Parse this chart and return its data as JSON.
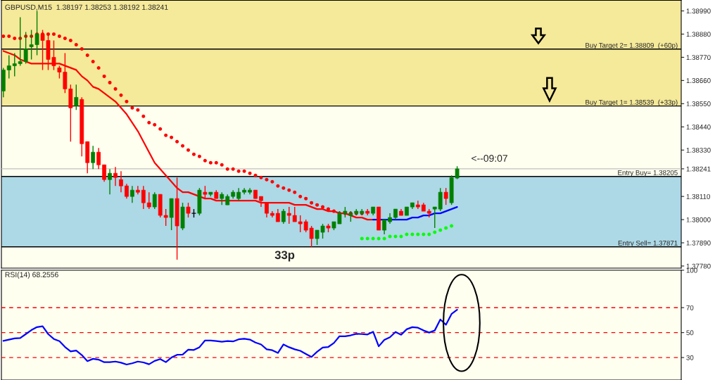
{
  "chart_data": [
    {
      "type": "candlestick",
      "title": "GBPUSD,M15  1.38197 1.38253 1.38192 1.38241",
      "categories": [
        null,
        null,
        null,
        null,
        null,
        null,
        null,
        null,
        null,
        null,
        null,
        null,
        null,
        null,
        null,
        null,
        null,
        null,
        null,
        null,
        null,
        null,
        null,
        null,
        null,
        null,
        null,
        null,
        null,
        null,
        null,
        null,
        null,
        null,
        null,
        null,
        null,
        null,
        null,
        null,
        null,
        null,
        null,
        null,
        null,
        null,
        null,
        null,
        null,
        null,
        null,
        null,
        null,
        null,
        null,
        null,
        null,
        null,
        null,
        null,
        null,
        null,
        null,
        null,
        null,
        null,
        null,
        null,
        null,
        null,
        null,
        null,
        null,
        null,
        null,
        null,
        null,
        null,
        null,
        null,
        null,
        null
      ],
      "ohlc": [
        [
          1.3861,
          1.3872,
          1.3858,
          1.3871
        ],
        [
          1.3871,
          1.3878,
          1.3867,
          1.3873
        ],
        [
          1.3873,
          1.3879,
          1.3868,
          1.3874
        ],
        [
          1.3874,
          1.3896,
          1.3873,
          1.3875
        ],
        [
          1.3875,
          1.3889,
          1.3874,
          1.3881
        ],
        [
          1.3882,
          1.389,
          1.3876,
          1.3883
        ],
        [
          1.3883,
          1.3899,
          1.3878,
          1.3888
        ],
        [
          1.3888,
          1.389,
          1.3871,
          1.3885
        ],
        [
          1.3885,
          1.3888,
          1.3871,
          1.3876
        ],
        [
          1.3877,
          1.3885,
          1.3871,
          1.3873
        ],
        [
          1.3872,
          1.3873,
          1.3867,
          1.387
        ],
        [
          1.387,
          1.3879,
          1.386,
          1.3862
        ],
        [
          1.3862,
          1.3864,
          1.3837,
          1.3853
        ],
        [
          1.3854,
          1.3864,
          1.3852,
          1.3858
        ],
        [
          1.3857,
          1.3858,
          1.383,
          1.3836
        ],
        [
          1.3837,
          1.3837,
          1.3822,
          1.3827
        ],
        [
          1.3827,
          1.3835,
          1.3824,
          1.3832
        ],
        [
          1.3832,
          1.3834,
          1.3824,
          1.3826
        ],
        [
          1.3826,
          1.3826,
          1.3818,
          1.3819
        ],
        [
          1.3819,
          1.3824,
          1.3812,
          1.3822
        ],
        [
          1.3822,
          1.3825,
          1.3816,
          1.382
        ],
        [
          1.3819,
          1.3823,
          1.3813,
          1.3816
        ],
        [
          1.3816,
          1.3817,
          1.381,
          1.3811
        ],
        [
          1.3811,
          1.3816,
          1.3808,
          1.3814
        ],
        [
          1.3814,
          1.3816,
          1.3812,
          1.3813
        ],
        [
          1.3814,
          1.3816,
          1.3805,
          1.3808
        ],
        [
          1.3808,
          1.3813,
          1.3805,
          1.3806
        ],
        [
          1.3806,
          1.3813,
          1.3805,
          1.3812
        ],
        [
          1.3812,
          1.3812,
          1.3801,
          1.3802
        ],
        [
          1.3802,
          1.3805,
          1.3797,
          1.3801
        ],
        [
          1.3801,
          1.381,
          1.3795,
          1.381
        ],
        [
          1.381,
          1.382,
          1.3781,
          1.3797
        ],
        [
          1.3796,
          1.3808,
          1.3795,
          1.3806
        ],
        [
          1.3806,
          1.3808,
          1.3801,
          1.3803
        ],
        [
          1.3803,
          1.3805,
          1.3801,
          1.3803
        ],
        [
          1.3803,
          1.3815,
          1.3802,
          1.3814
        ],
        [
          1.3813,
          1.3816,
          1.381,
          1.3812
        ],
        [
          1.3812,
          1.3813,
          1.3811,
          1.3813
        ],
        [
          1.3813,
          1.3814,
          1.381,
          1.381
        ],
        [
          1.381,
          1.3813,
          1.3807,
          1.3812
        ],
        [
          1.3807,
          1.3812,
          1.3807,
          1.3811
        ],
        [
          1.3811,
          1.3814,
          1.381,
          1.3813
        ],
        [
          1.381,
          1.3815,
          1.3809,
          1.3813
        ],
        [
          1.3813,
          1.3815,
          1.3812,
          1.3814
        ],
        [
          1.3813,
          1.3815,
          1.3812,
          1.3814
        ],
        [
          1.3814,
          1.3814,
          1.381,
          1.381
        ],
        [
          1.3811,
          1.3811,
          1.3806,
          1.3809
        ],
        [
          1.3808,
          1.3808,
          1.3801,
          1.3803
        ],
        [
          1.3803,
          1.3804,
          1.3801,
          1.3802
        ],
        [
          1.3803,
          1.3805,
          1.3799,
          1.3799
        ],
        [
          1.3799,
          1.3805,
          1.3798,
          1.3804
        ],
        [
          1.3803,
          1.3806,
          1.3798,
          1.3802
        ],
        [
          1.3802,
          1.3806,
          1.3799,
          1.3799
        ],
        [
          1.3799,
          1.3802,
          1.3794,
          1.3798
        ],
        [
          1.3799,
          1.38,
          1.3794,
          1.3795
        ],
        [
          1.3796,
          1.3797,
          1.3787,
          1.3791
        ],
        [
          1.3791,
          1.3795,
          1.3788,
          1.3795
        ],
        [
          1.3794,
          1.3798,
          1.3791,
          1.3797
        ],
        [
          1.3797,
          1.3798,
          1.3794,
          1.3796
        ],
        [
          1.3796,
          1.3799,
          1.3795,
          1.3799
        ],
        [
          1.3798,
          1.3804,
          1.3798,
          1.3803
        ],
        [
          1.3803,
          1.3806,
          1.3801,
          1.3804
        ],
        [
          1.3802,
          1.3804,
          1.3799,
          1.3803
        ],
        [
          1.3803,
          1.3805,
          1.3802,
          1.3804
        ],
        [
          1.3803,
          1.3805,
          1.3802,
          1.3804
        ],
        [
          1.3804,
          1.3805,
          1.3802,
          1.3803
        ],
        [
          1.3803,
          1.3806,
          1.3802,
          1.3806
        ],
        [
          1.3806,
          1.3806,
          1.3795,
          1.3795
        ],
        [
          1.3795,
          1.38,
          1.3793,
          1.38
        ],
        [
          1.3799,
          1.3803,
          1.3798,
          1.3801
        ],
        [
          1.3801,
          1.3805,
          1.38,
          1.3805
        ],
        [
          1.3804,
          1.3805,
          1.3802,
          1.3802
        ],
        [
          1.3802,
          1.3806,
          1.3802,
          1.3806
        ],
        [
          1.3806,
          1.3808,
          1.3805,
          1.3808
        ],
        [
          1.3807,
          1.3809,
          1.3805,
          1.3806
        ],
        [
          1.3807,
          1.3808,
          1.3804,
          1.3804
        ],
        [
          1.3804,
          1.3805,
          1.3801,
          1.3803
        ],
        [
          1.3805,
          1.3806,
          1.3796,
          1.3806
        ],
        [
          1.3805,
          1.3815,
          1.3804,
          1.3813
        ],
        [
          1.3813,
          1.3815,
          1.3807,
          1.381
        ],
        [
          1.3808,
          1.3821,
          1.3807,
          1.382
        ],
        [
          1.38197,
          1.38253,
          1.38192,
          1.38241
        ]
      ],
      "colors": [
        "#008000",
        "#008000",
        "#008000",
        "#008000",
        "#008000",
        "#008000",
        "#008000",
        "#ff0000",
        "#ff0000",
        "#ff0000",
        "#ff0000",
        "#ff0000",
        "#ff0000",
        "#008000",
        "#ff0000",
        "#ff0000",
        "#008000",
        "#ff0000",
        "#ff0000",
        "#008000",
        "#ff0000",
        "#ff0000",
        "#ff0000",
        "#008000",
        "#ff0000",
        "#ff0000",
        "#ff0000",
        "#008000",
        "#ff0000",
        "#ff0000",
        "#008000",
        "#ff0000",
        "#008000",
        "#ff0000",
        "#000000",
        "#008000",
        "#ff0000",
        "#008000",
        "#ff0000",
        "#008000",
        "#008000",
        "#008000",
        "#008000",
        "#008000",
        "#008000",
        "#ff0000",
        "#ff0000",
        "#ff0000",
        "#ff0000",
        "#ff0000",
        "#008000",
        "#ff0000",
        "#ff0000",
        "#ff0000",
        "#ff0000",
        "#ff0000",
        "#008000",
        "#008000",
        "#ff0000",
        "#008000",
        "#008000",
        "#008000",
        "#008000",
        "#008000",
        "#008000",
        "#ff0000",
        "#008000",
        "#ff0000",
        "#008000",
        "#008000",
        "#008000",
        "#ff0000",
        "#008000",
        "#008000",
        "#ff0000",
        "#ff0000",
        "#ff0000",
        "#008000",
        "#008000",
        "#ff0000",
        "#008000",
        "#008000"
      ],
      "series": [
        {
          "type": "line",
          "color": "#ff0000",
          "values": [
            1.388,
            1.3879,
            1.3878,
            1.3876,
            1.3875,
            1.3874,
            1.3874,
            1.3874,
            1.3874,
            1.3874,
            1.3874,
            1.3873,
            1.3872,
            1.3871,
            1.3868,
            1.3866,
            1.3863,
            1.3862,
            1.386,
            1.3858,
            1.3856,
            1.3853,
            1.385,
            1.3846,
            1.3842,
            1.3837,
            1.3832,
            1.3827,
            1.3824,
            1.3821,
            1.3818,
            1.3815,
            1.3813,
            1.3813,
            1.3812,
            1.3811,
            1.381,
            1.381,
            1.3809,
            1.3809,
            1.3809,
            1.3809,
            1.3809,
            1.3809,
            1.3809,
            1.3809,
            1.3808,
            1.3808,
            1.3808,
            1.3808,
            1.3808,
            1.3808,
            1.3807,
            1.3807,
            1.3807,
            1.3806,
            1.3805,
            1.3805,
            1.3804,
            1.3804,
            1.3803,
            1.3803,
            1.3802,
            1.3801,
            1.3801,
            1.38,
            1.38,
            null,
            null,
            null,
            null,
            null,
            null,
            null,
            null,
            null,
            null,
            null,
            null,
            null,
            null,
            null
          ]
        },
        {
          "type": "line",
          "color": "#0000ff",
          "values": [
            null,
            null,
            null,
            null,
            null,
            null,
            null,
            null,
            null,
            null,
            null,
            null,
            null,
            null,
            null,
            null,
            null,
            null,
            null,
            null,
            null,
            null,
            null,
            null,
            null,
            null,
            null,
            null,
            null,
            null,
            null,
            null,
            null,
            null,
            null,
            null,
            null,
            null,
            null,
            null,
            null,
            null,
            null,
            null,
            null,
            null,
            null,
            null,
            null,
            null,
            null,
            null,
            null,
            null,
            null,
            null,
            null,
            null,
            null,
            null,
            null,
            null,
            null,
            null,
            null,
            null,
            1.38,
            1.38,
            1.38,
            1.38,
            1.38,
            1.38,
            1.38,
            1.3801,
            1.3801,
            1.3802,
            1.3802,
            1.3803,
            1.3803,
            1.3804,
            1.3805,
            1.3806
          ]
        },
        {
          "type": "scatter",
          "marker": "circle",
          "color": "#ff0000",
          "values": [
            1.3887,
            1.3887,
            1.3886,
            1.3886,
            1.3887,
            1.3887,
            1.3888,
            1.3888,
            1.3888,
            1.3888,
            1.3887,
            1.3886,
            1.3885,
            1.3883,
            1.3881,
            1.3878,
            1.3875,
            1.3872,
            1.3868,
            1.3865,
            1.3862,
            1.3859,
            1.3856,
            1.3853,
            1.3852,
            1.3849,
            1.3846,
            1.3845,
            1.3843,
            1.384,
            1.3839,
            1.3837,
            1.3835,
            1.3833,
            1.3831,
            1.383,
            1.3828,
            1.3827,
            1.3827,
            1.3826,
            1.3824,
            1.3824,
            1.3823,
            1.3823,
            1.3822,
            1.3821,
            1.382,
            1.3819,
            1.3818,
            1.3816,
            1.3815,
            1.3814,
            1.3813,
            1.3811,
            1.381,
            1.3808,
            1.3807,
            1.3806,
            1.3805,
            1.3804,
            1.3803,
            1.3803,
            1.3803,
            1.3803,
            1.3803,
            null,
            null,
            null,
            null,
            null,
            null,
            null,
            null,
            null,
            null,
            null,
            null,
            null,
            null,
            null,
            null,
            null
          ]
        },
        {
          "type": "scatter",
          "marker": "circle",
          "color": "#00ff00",
          "values": [
            null,
            null,
            null,
            null,
            null,
            null,
            null,
            null,
            null,
            null,
            null,
            null,
            null,
            null,
            null,
            null,
            null,
            null,
            null,
            null,
            null,
            null,
            null,
            null,
            null,
            null,
            null,
            null,
            null,
            null,
            null,
            null,
            null,
            null,
            null,
            null,
            null,
            null,
            null,
            null,
            null,
            null,
            null,
            null,
            null,
            null,
            null,
            null,
            null,
            null,
            null,
            null,
            null,
            null,
            null,
            null,
            null,
            null,
            null,
            null,
            null,
            null,
            null,
            null,
            1.3791,
            1.3791,
            1.3791,
            1.3791,
            1.3791,
            1.3792,
            1.3792,
            1.3792,
            1.3793,
            1.3793,
            1.3793,
            1.3793,
            1.3793,
            1.3794,
            1.3795,
            1.3796,
            1.3797,
            null
          ]
        }
      ],
      "ylim": [
        1.3777,
        1.3904
      ],
      "yticks": [
        {
          "value": 1.3778,
          "label": "1.37780"
        },
        {
          "value": 1.3789,
          "label": "1.37890"
        },
        {
          "value": 1.38,
          "label": "1.38000"
        },
        {
          "value": 1.3811,
          "label": "1.38110"
        },
        {
          "value": 1.38241,
          "label": "1.38241"
        },
        {
          "value": 1.3833,
          "label": "1.38330"
        },
        {
          "value": 1.3844,
          "label": "1.38440"
        },
        {
          "value": 1.3855,
          "label": "1.38550"
        },
        {
          "value": 1.3866,
          "label": "1.38660"
        },
        {
          "value": 1.3877,
          "label": "1.38770"
        },
        {
          "value": 1.3888,
          "label": "1.38880"
        },
        {
          "value": 1.3899,
          "label": "1.38990"
        }
      ],
      "ref_lines": [
        {
          "axis": "y",
          "value": 1.38809,
          "label": "Buy Target 2= 1.38809  (+60p)",
          "color": "#000000"
        },
        {
          "axis": "y",
          "value": 1.38539,
          "label": "Buy Target 1= 1.38539  (+33p)",
          "color": "#000000"
        },
        {
          "axis": "y",
          "value": 1.38205,
          "label": "Entry Buy= 1.38205",
          "color": "#000000"
        },
        {
          "axis": "y",
          "value": 1.37871,
          "label": "Entry Sell= 1.37871",
          "color": "#000000"
        },
        {
          "axis": "y",
          "value": 1.38241,
          "color": "#c0c0c0"
        }
      ],
      "bands": [
        {
          "axis": "y",
          "from": 1.38539,
          "to": 1.3904,
          "color": "#f5e99a"
        },
        {
          "axis": "y",
          "from": 1.37871,
          "to": 1.38205,
          "color": "#add8e6"
        }
      ],
      "annotations": [
        "<--09:07",
        "33p"
      ],
      "tick_labels": "y"
    },
    {
      "type": "line",
      "title": "RSI(14) 68.2556",
      "categories": [
        null,
        null,
        null,
        null,
        null,
        null,
        null,
        null,
        null,
        null,
        null,
        null,
        null,
        null,
        null,
        null,
        null,
        null,
        null,
        null,
        null,
        null,
        null,
        null,
        null,
        null,
        null,
        null,
        null,
        null,
        null,
        null,
        null,
        null,
        null,
        null,
        null,
        null,
        null,
        null,
        null,
        null,
        null,
        null,
        null,
        null,
        null,
        null,
        null,
        null,
        null,
        null,
        null,
        null,
        null,
        null,
        null,
        null,
        null,
        null,
        null,
        null,
        null,
        null,
        null,
        null,
        null,
        null,
        null,
        null,
        null,
        null,
        null,
        null,
        null,
        null,
        null,
        null,
        null,
        null,
        null,
        null
      ],
      "series": [
        {
          "color": "#0000ff",
          "values": [
            43.4,
            44.4,
            45.4,
            45.6,
            48.8,
            52.0,
            54.4,
            55.1,
            48.8,
            44.9,
            43.2,
            38.5,
            34.9,
            35.6,
            32.0,
            27.1,
            29.0,
            28.3,
            26.3,
            26.3,
            26.8,
            25.9,
            24.4,
            25.4,
            26.8,
            26.1,
            24.6,
            27.3,
            28.8,
            26.3,
            30.0,
            32.2,
            32.4,
            36.3,
            36.1,
            38.3,
            43.7,
            43.7,
            43.2,
            42.7,
            43.2,
            42.9,
            44.6,
            45.1,
            44.4,
            42.0,
            40.5,
            36.6,
            35.9,
            33.7,
            40.5,
            38.3,
            36.6,
            35.4,
            32.9,
            30.5,
            34.6,
            38.0,
            38.5,
            41.7,
            47.1,
            47.1,
            47.8,
            49.0,
            48.8,
            48.5,
            50.7,
            39.0,
            44.1,
            46.3,
            50.5,
            48.3,
            52.7,
            54.4,
            53.9,
            51.7,
            50.0,
            51.7,
            60.5,
            56.3,
            64.9,
            68.3
          ]
        }
      ],
      "ylim": [
        12,
        100
      ],
      "yticks": [
        30,
        50,
        70,
        100
      ],
      "ref_lines": [
        {
          "axis": "y",
          "value": 70,
          "color": "#ff0000",
          "line_style": "dashed"
        },
        {
          "axis": "y",
          "value": 50,
          "color": "#ff0000",
          "line_style": "dashed"
        },
        {
          "axis": "y",
          "value": 30,
          "color": "#ff0000",
          "line_style": "dashed"
        }
      ],
      "tick_labels": "y"
    }
  ]
}
